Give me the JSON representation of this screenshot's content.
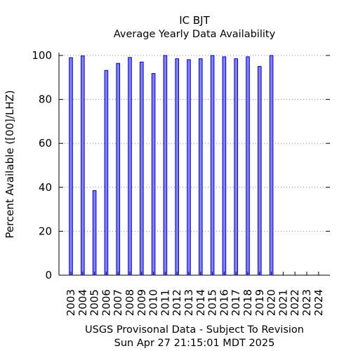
{
  "chart_data": {
    "type": "bar",
    "title": "IC BJT",
    "subtitle": "Average Yearly Data Availability",
    "ylabel": "Percent Available ([00]/LHZ)",
    "xlabel": "USGS Provisonal Data - Subject To Revision",
    "footer": "Sun Apr 27 21:15:01 MDT 2025",
    "ylim": [
      0,
      100
    ],
    "yticks": [
      "0",
      "20",
      "40",
      "60",
      "80",
      "100"
    ],
    "grid": true,
    "categories": [
      "2003",
      "2004",
      "2005",
      "2006",
      "2007",
      "2008",
      "2009",
      "2010",
      "2011",
      "2012",
      "2013",
      "2014",
      "2015",
      "2016",
      "2017",
      "2018",
      "2019",
      "2020",
      "2021",
      "2022",
      "2023",
      "2024"
    ],
    "values": [
      99,
      99.8,
      38.5,
      93.2,
      96.4,
      99.1,
      97,
      91.8,
      100,
      98.5,
      98.1,
      98.5,
      100,
      99.4,
      98.5,
      99.4,
      95,
      100,
      null,
      null,
      null,
      null
    ],
    "bar_fill": "#7f7fff",
    "bar_stroke": "#0000cc"
  }
}
